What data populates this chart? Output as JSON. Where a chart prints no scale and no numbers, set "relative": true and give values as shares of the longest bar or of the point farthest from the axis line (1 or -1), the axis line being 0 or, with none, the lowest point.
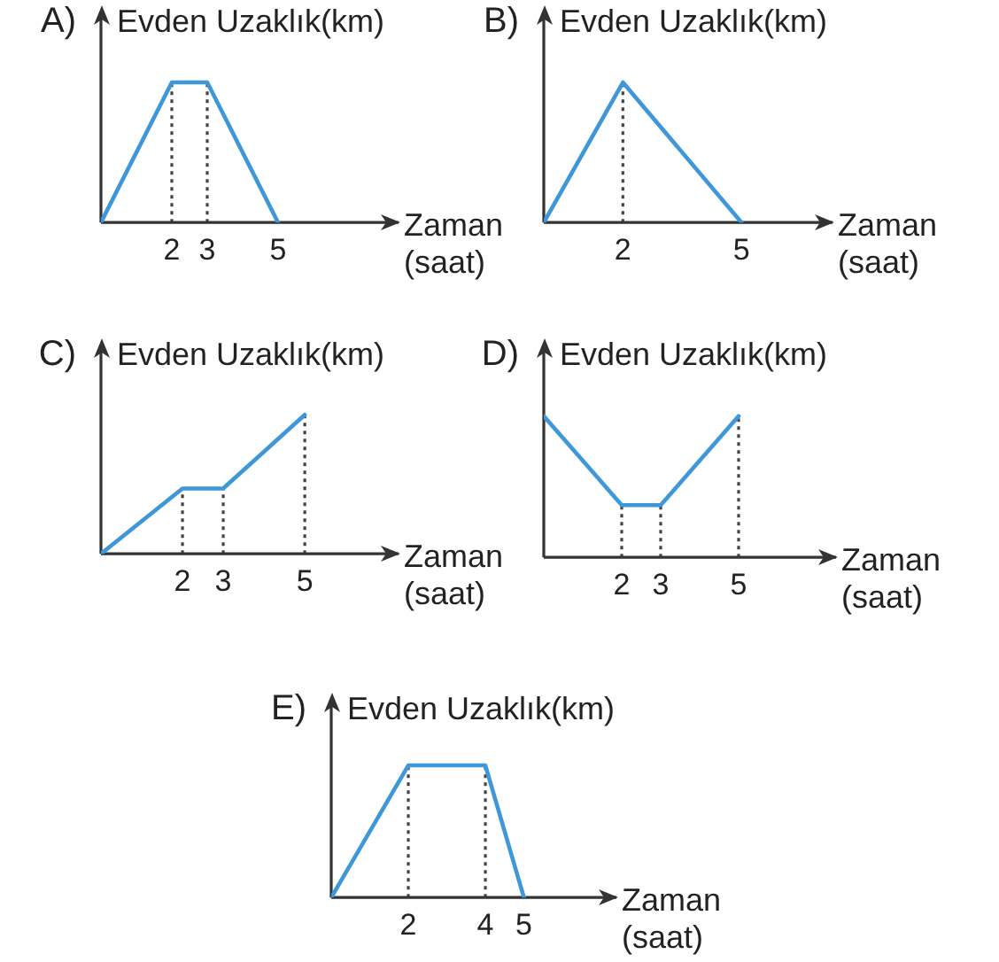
{
  "chart_data": [
    {
      "type": "line",
      "title": "A)",
      "ylabel": "Evden Uzaklık(km)",
      "xlabel": "Zaman (saat)",
      "relative": true,
      "x": [
        0,
        2,
        3,
        5
      ],
      "values": [
        0,
        1,
        1,
        0
      ],
      "color": "#3d97d8",
      "xlim": [
        0,
        8.4
      ],
      "xticks": [
        2,
        3,
        5
      ],
      "ref_lines": [
        {
          "axis": "x",
          "value": 2,
          "color": "#444444",
          "line_style": "dotted"
        },
        {
          "axis": "x",
          "value": 3,
          "color": "#444444",
          "line_style": "dotted"
        }
      ]
    },
    {
      "type": "line",
      "title": "B)",
      "ylabel": "Evden Uzaklık(km)",
      "xlabel": "Zaman (saat)",
      "relative": true,
      "x": [
        0,
        2,
        5
      ],
      "values": [
        0,
        1,
        0
      ],
      "color": "#3d97d8",
      "xlim": [
        0,
        7.3
      ],
      "xticks": [
        2,
        5
      ],
      "ref_lines": [
        {
          "axis": "x",
          "value": 2,
          "color": "#444444",
          "line_style": "dotted"
        }
      ]
    },
    {
      "type": "line",
      "title": "C)",
      "ylabel": "Evden Uzaklık(km)",
      "xlabel": "Zaman (saat)",
      "relative": true,
      "x": [
        0,
        2,
        3,
        5
      ],
      "values": [
        0,
        0.47,
        0.47,
        1
      ],
      "color": "#3d97d8",
      "xlim": [
        0,
        7.3
      ],
      "xticks": [
        2,
        3,
        5
      ],
      "ref_lines": [
        {
          "axis": "x",
          "value": 2,
          "color": "#444444",
          "line_style": "dotted"
        },
        {
          "axis": "x",
          "value": 3,
          "color": "#444444",
          "line_style": "dotted"
        },
        {
          "axis": "x",
          "value": 5,
          "color": "#444444",
          "line_style": "dotted"
        }
      ]
    },
    {
      "type": "line",
      "title": "D)",
      "ylabel": "Evden Uzaklık(km)",
      "xlabel": "Zaman (saat)",
      "relative": true,
      "x": [
        0,
        2,
        3,
        5
      ],
      "values": [
        1,
        0.37,
        0.37,
        1
      ],
      "color": "#3d97d8",
      "xlim": [
        0,
        7.5
      ],
      "xticks": [
        2,
        3,
        5
      ],
      "ref_lines": [
        {
          "axis": "x",
          "value": 2,
          "color": "#444444",
          "line_style": "dotted"
        },
        {
          "axis": "x",
          "value": 3,
          "color": "#444444",
          "line_style": "dotted"
        },
        {
          "axis": "x",
          "value": 5,
          "color": "#444444",
          "line_style": "dotted"
        }
      ]
    },
    {
      "type": "line",
      "title": "E)",
      "ylabel": "Evden Uzaklık(km)",
      "xlabel": "Zaman (saat)",
      "relative": true,
      "x": [
        0,
        2,
        4,
        5
      ],
      "values": [
        0,
        1,
        1,
        0
      ],
      "color": "#3d97d8",
      "xlim": [
        0,
        7.4
      ],
      "xticks": [
        2,
        4,
        5
      ],
      "ref_lines": [
        {
          "axis": "x",
          "value": 2,
          "color": "#444444",
          "line_style": "dotted"
        },
        {
          "axis": "x",
          "value": 4,
          "color": "#444444",
          "line_style": "dotted"
        }
      ]
    }
  ]
}
